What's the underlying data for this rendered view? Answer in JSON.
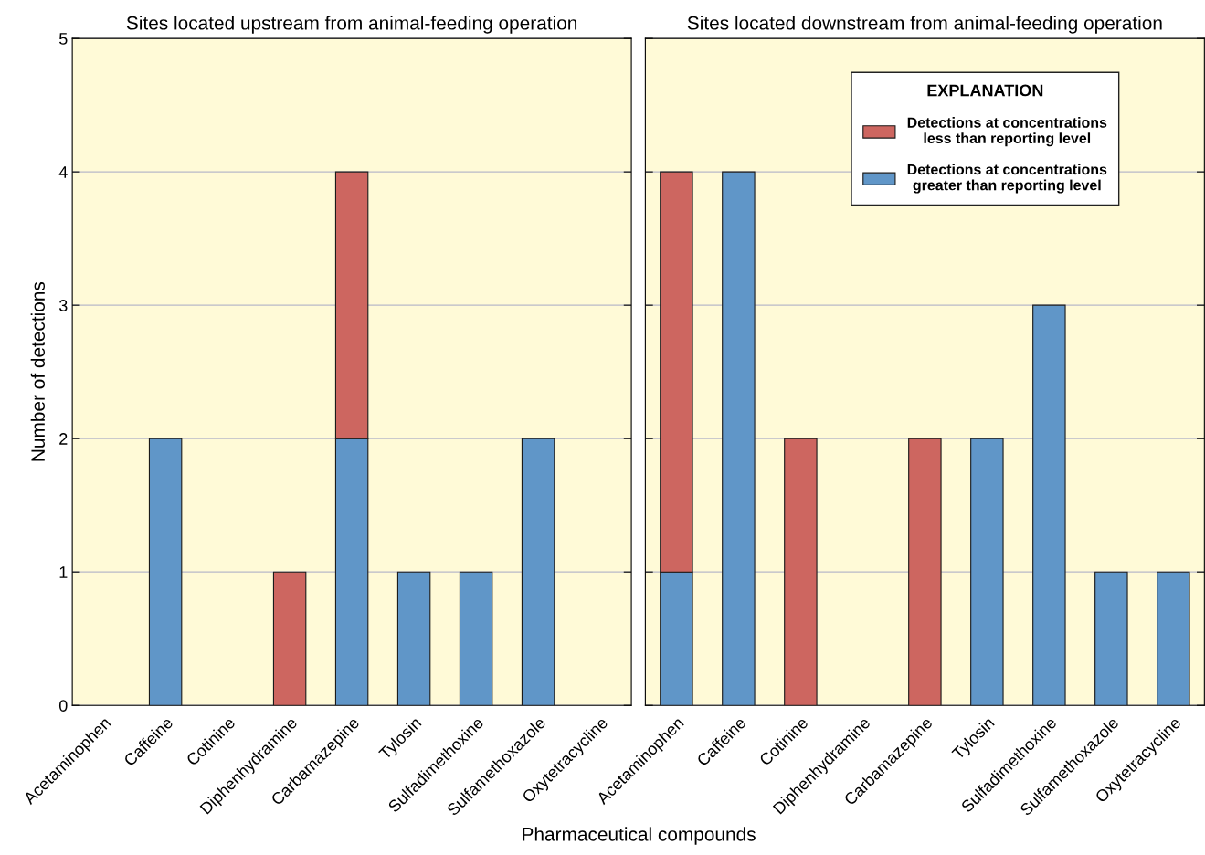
{
  "chart_data": [
    {
      "type": "bar",
      "title": "Sites located upstream from animal-feeding operation",
      "xlabel": "Pharmaceutical compounds",
      "ylabel": "Number of detections",
      "categories": [
        "Acetaminophen",
        "Caffeine",
        "Cotinine",
        "Diphenhydramine",
        "Carbamazepine",
        "Tylosin",
        "Sulfadimethoxine",
        "Sulfamethoxazole",
        "Oxytetracycline"
      ],
      "stacked": true,
      "series": [
        {
          "color": "#6096c8",
          "values": [
            0,
            2,
            0,
            0,
            2,
            1,
            1,
            2,
            0
          ]
        },
        {
          "color": "#cd6660",
          "values": [
            0,
            0,
            0,
            1,
            2,
            0,
            0,
            0,
            0
          ]
        }
      ],
      "ylim": [
        0,
        5
      ],
      "yticks": [
        0,
        1,
        2,
        3,
        4,
        5
      ],
      "grid": "y",
      "legend": false
    },
    {
      "type": "bar",
      "title": "Sites located downstream from animal-feeding operation",
      "categories": [
        "Acetaminophen",
        "Caffeine",
        "Cotinine",
        "Diphenhydramine",
        "Carbamazepine",
        "Tylosin",
        "Sulfadimethoxine",
        "Sulfamethoxazole",
        "Oxytetracycline"
      ],
      "stacked": true,
      "legend_title": "EXPLANATION",
      "series": [
        {
          "name": "Detections at concentrations\ngreater than reporting level",
          "color": "#6096c8",
          "values": [
            1,
            4,
            0,
            0,
            0,
            2,
            3,
            1,
            1
          ]
        },
        {
          "name": "Detections at concentrations\nless than reporting level",
          "color": "#cd6660",
          "values": [
            3,
            0,
            2,
            0,
            2,
            0,
            0,
            0,
            0
          ]
        }
      ],
      "ylim": [
        0,
        5
      ],
      "yticks": [
        0,
        1,
        2,
        3,
        4,
        5
      ],
      "grid": "y",
      "legend": "top right",
      "tick_labels": "x"
    }
  ]
}
